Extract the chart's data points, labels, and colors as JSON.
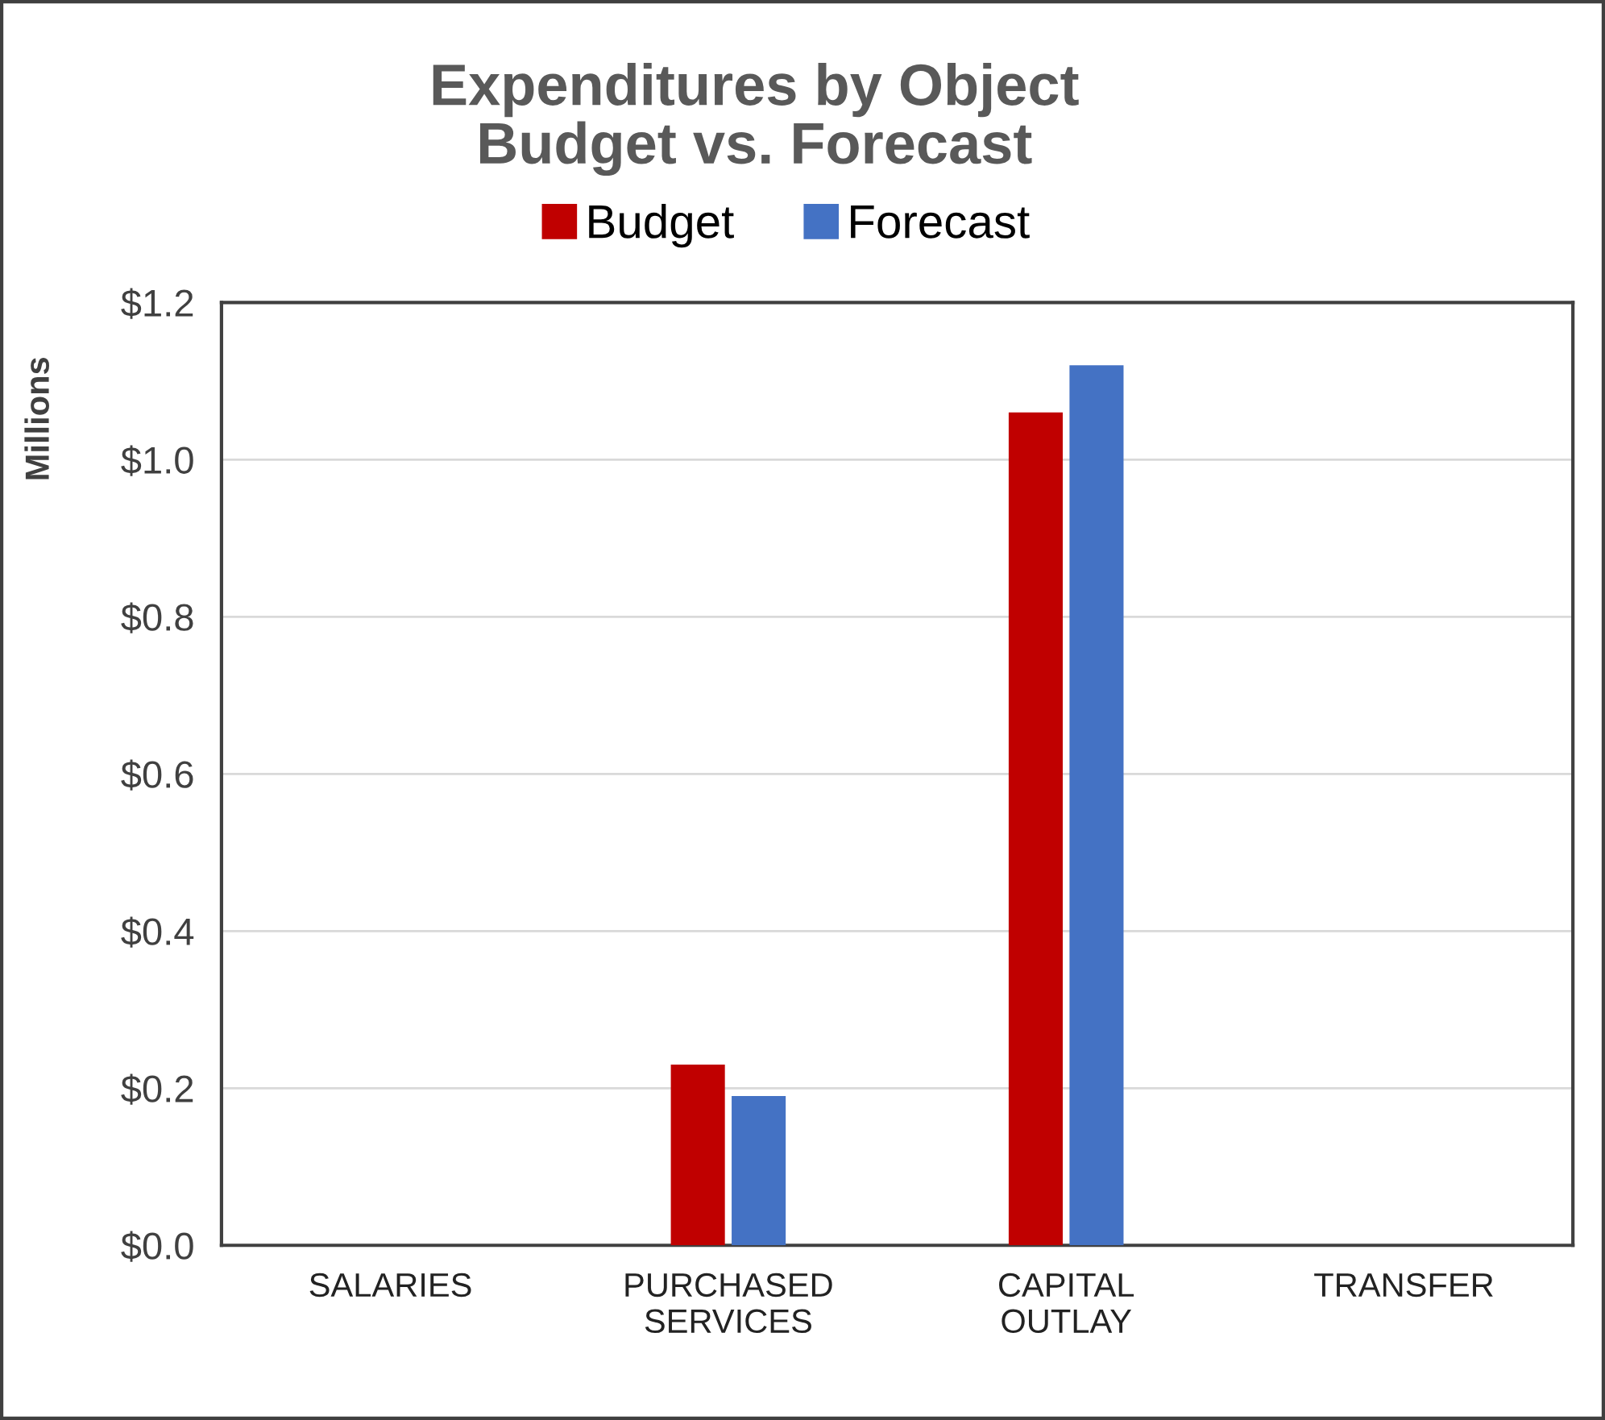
{
  "chart_data": {
    "type": "bar",
    "title": "Expenditures by Object\nBudget vs. Forecast",
    "ylabel": "Millions",
    "categories": [
      "SALARIES",
      "PURCHASED\nSERVICES",
      "CAPITAL\nOUTLAY",
      "TRANSFER"
    ],
    "series": [
      {
        "name": "Budget",
        "color": "#c00000",
        "values": [
          0,
          0.23,
          1.06,
          0
        ]
      },
      {
        "name": "Forecast",
        "color": "#4472c4",
        "values": [
          0,
          0.19,
          1.12,
          0
        ]
      }
    ],
    "ylim": [
      0,
      1.2
    ],
    "yticks": [
      {
        "value": 0,
        "label": "$0.0"
      },
      {
        "value": 0.2,
        "label": "$0.2"
      },
      {
        "value": 0.4,
        "label": "$0.4"
      },
      {
        "value": 0.6,
        "label": "$0.6"
      },
      {
        "value": 0.8,
        "label": "$0.8"
      },
      {
        "value": 1.0,
        "label": "$1.0"
      },
      {
        "value": 1.2,
        "label": "$1.2"
      }
    ],
    "grid": "y",
    "legend": "top"
  }
}
